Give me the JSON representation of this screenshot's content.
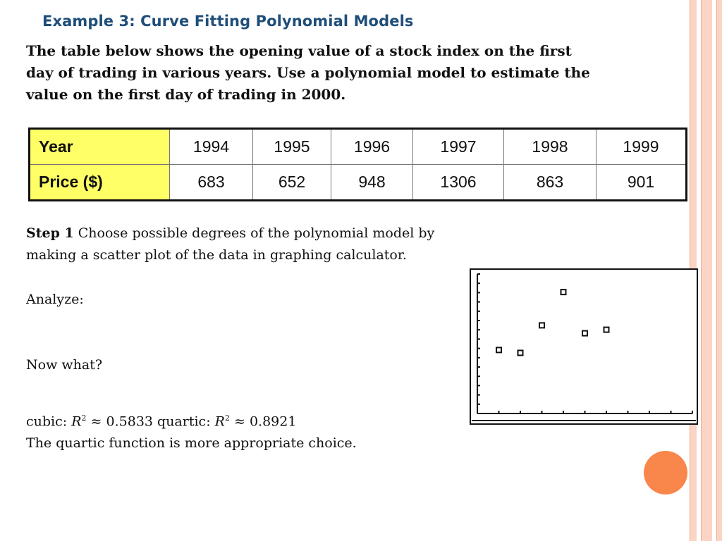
{
  "slide": {
    "title": "Example 3: Curve Fitting Polynomial Models",
    "intro_lines": [
      "The table below shows the opening value of a stock index on the first",
      "day of trading in various years. Use a polynomial model to estimate the",
      "value on the first day of trading in 2000."
    ]
  },
  "table": {
    "row1_header": "Year",
    "row2_header": "Price ($)",
    "years": [
      "1994",
      "1995",
      "1996",
      "1997",
      "1998",
      "1999"
    ],
    "prices": [
      "683",
      "652",
      "948",
      "1306",
      "863",
      "901"
    ]
  },
  "step1": {
    "label": "Step 1",
    "text_line1": "Choose possible degrees of the polynomial model by",
    "text_line2": "making a scatter plot of the data in graphing calculator."
  },
  "analyze": "Analyze:",
  "now_what": "Now what?",
  "fit": {
    "cubic_prefix": "cubic: ",
    "r": "R",
    "sq": "2",
    "cubic_value": " ≈ 0.5833 quartic: ",
    "quartic_value": " ≈ 0.8921",
    "conclusion": "The quartic function is more appropriate choice."
  },
  "colors": {
    "title": "#1f4e79",
    "header_fill": "#ffff66",
    "accent_circle": "#f9864a",
    "border_stripe": "#fbd5c4"
  },
  "chart_data": {
    "type": "scatter",
    "x": [
      1994,
      1995,
      1996,
      1997,
      1998,
      1999
    ],
    "y": [
      683,
      652,
      948,
      1306,
      863,
      901
    ],
    "xlim": [
      1993,
      2003
    ],
    "ylim": [
      0,
      1500
    ],
    "x_ticks": 10,
    "y_ticks": 15,
    "grid": false
  }
}
